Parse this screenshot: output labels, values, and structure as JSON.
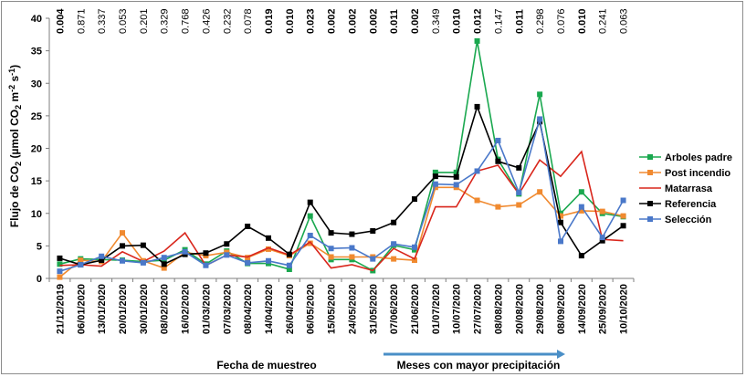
{
  "chart_data": {
    "type": "line",
    "ylabel_parts": [
      "Flujo de  CO",
      "2",
      " (µmol CO",
      "2",
      " m",
      "-2",
      " s",
      "-1",
      ")"
    ],
    "xlabel": "Fecha de muestreo",
    "annotation": "Meses con mayor precipitación",
    "ylim": [
      0,
      40
    ],
    "yticks": [
      0,
      5,
      10,
      15,
      20,
      25,
      30,
      35,
      40
    ],
    "categories": [
      "21/12/2019",
      "06/01/2020",
      "13/01/2020",
      "20/01/2020",
      "30/01/2020",
      "08/02/2020",
      "16/02/2020",
      "01/03/2020",
      "07/03/2020",
      "08/04/2020",
      "14/04/2020",
      "26/04/2020",
      "06/05/2020",
      "15/05/2020",
      "24/05/2020",
      "31/05/2020",
      "07/06/2020",
      "21/06/2020",
      "01/07/2020",
      "10/07/2020",
      "27/07/2020",
      "08/08/2020",
      "20/08/2020",
      "29/08/2020",
      "08/09/2020",
      "14/09/2020",
      "25/09/2020",
      "10/10/2020"
    ],
    "p_values": [
      "0.004",
      "0.871",
      "0.337",
      "0.053",
      "0.201",
      "0.329",
      "0.768",
      "0.426",
      "0.232",
      "0.078",
      "0.019",
      "0.010",
      "0.023",
      "0.002",
      "0.002",
      "0.002",
      "0.011",
      "0.002",
      "0.349",
      "0.010",
      "0.012",
      "0.147",
      "0.011",
      "0.298",
      "0.076",
      "0.010",
      "0.241",
      "0.063"
    ],
    "p_bold": [
      true,
      false,
      false,
      false,
      false,
      false,
      false,
      false,
      false,
      false,
      true,
      true,
      true,
      true,
      true,
      true,
      true,
      true,
      false,
      true,
      true,
      false,
      true,
      false,
      false,
      true,
      false,
      false
    ],
    "series": [
      {
        "name": "Arboles padre",
        "color": "#1aa84f",
        "marker": "square",
        "values": [
          2.2,
          3.0,
          2.9,
          2.8,
          2.6,
          2.8,
          4.4,
          2.2,
          4.2,
          2.3,
          2.3,
          1.4,
          9.6,
          2.9,
          2.9,
          1.2,
          5.1,
          4.4,
          16.3,
          16.3,
          36.5,
          18.3,
          13.0,
          28.3,
          10.0,
          13.3,
          10.0,
          9.5
        ]
      },
      {
        "name": "Post incendio",
        "color": "#f08a30",
        "marker": "square",
        "values": [
          0.2,
          2.8,
          2.6,
          7.0,
          2.7,
          1.6,
          4.0,
          3.5,
          4.0,
          3.2,
          4.5,
          3.5,
          5.4,
          3.3,
          3.3,
          3.3,
          3.0,
          2.8,
          14.0,
          14.0,
          12.0,
          11.0,
          11.3,
          13.3,
          9.6,
          10.4,
          10.3,
          9.6
        ]
      },
      {
        "name": "Matarrasa",
        "color": "#d9261c",
        "marker": "none",
        "values": [
          2.0,
          2.1,
          1.9,
          4.1,
          2.6,
          4.2,
          7.0,
          2.0,
          3.6,
          3.3,
          4.7,
          3.6,
          5.6,
          1.6,
          2.1,
          1.2,
          4.6,
          3.0,
          11.0,
          11.0,
          16.5,
          17.4,
          13.0,
          18.2,
          15.7,
          19.5,
          6.0,
          5.8
        ]
      },
      {
        "name": "Referencia",
        "color": "#000000",
        "marker": "square",
        "values": [
          3.1,
          2.1,
          2.8,
          5.0,
          5.1,
          2.2,
          3.7,
          3.9,
          5.3,
          8.0,
          6.2,
          3.7,
          11.7,
          7.0,
          6.8,
          7.3,
          8.6,
          12.2,
          15.7,
          15.6,
          26.4,
          18.0,
          17.0,
          24.1,
          8.6,
          3.5,
          5.8,
          8.1
        ]
      },
      {
        "name": "Selección",
        "color": "#4a78c9",
        "marker": "square",
        "values": [
          1.1,
          2.1,
          3.4,
          2.7,
          2.4,
          3.2,
          4.1,
          2.0,
          3.6,
          2.4,
          2.7,
          2.0,
          6.6,
          4.6,
          4.7,
          3.0,
          5.3,
          4.8,
          14.5,
          14.4,
          16.5,
          21.2,
          13.2,
          24.5,
          5.7,
          11.0,
          6.3,
          12.0
        ]
      }
    ]
  }
}
